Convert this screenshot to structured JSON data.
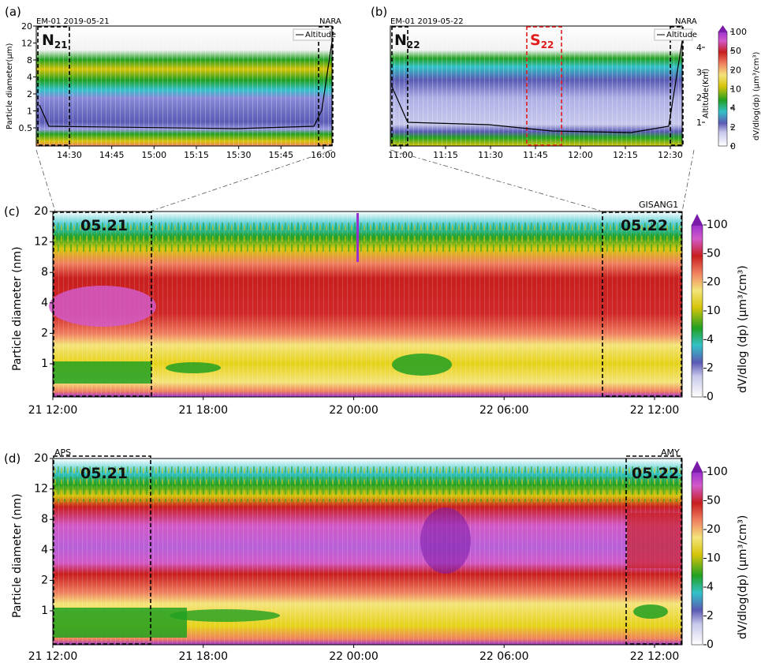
{
  "colors": {
    "scale": [
      "#ffffff",
      "#c8c8ec",
      "#5a5ab4",
      "#2d2d88",
      "#33c2c8",
      "#7ed0b8",
      "#22a022",
      "#d6c40a",
      "#f4e47a",
      "#f08060",
      "#c81e1e",
      "#d25ac8",
      "#7a1aa8",
      "#000000",
      "#d01f1f"
    ]
  },
  "panels": [
    {
      "id": "a",
      "panel_label": "(a)",
      "left_title": "EM-01 2019-05-21",
      "right_title": "NARA",
      "legend": "Altitude",
      "yticks": [
        "20",
        "12",
        "8",
        "4",
        "2",
        "1",
        "0.5"
      ],
      "ylabel": "Particle diameter(μm)",
      "xticks": [
        "14:30",
        "14:45",
        "15:00",
        "15:15",
        "15:30",
        "15:45",
        "16:00"
      ],
      "box_labels": [
        {
          "main": "N",
          "sub": "21",
          "color": "black"
        }
      ]
    },
    {
      "id": "b",
      "panel_label": "(b)",
      "left_title": "EM-01 2019-05-22",
      "right_title": "NARA",
      "legend": "Altitude",
      "xticks": [
        "11:00",
        "11:15",
        "11:30",
        "11:45",
        "12:00",
        "12:15",
        "12:30"
      ],
      "alt_ticks": [
        "4",
        "3",
        "2",
        "1"
      ],
      "alt_label": "Altitude(Km)",
      "cbar_ticks": [
        "100",
        "50",
        "20",
        "10",
        "4",
        "2",
        "0"
      ],
      "cbar_label": "dV/dlog(dp) (μm³/cm³)",
      "box_labels": [
        {
          "main": "N",
          "sub": "22",
          "color": "black"
        },
        {
          "main": "S",
          "sub": "22",
          "color": "red"
        }
      ]
    },
    {
      "id": "c",
      "panel_label": "(c)",
      "corner_right": "GISANG1",
      "yticks": [
        "20",
        "12",
        "8",
        "4",
        "2",
        "1"
      ],
      "ylabel": "Particle diameter (nm)",
      "xticks": [
        "21 12:00",
        "21 18:00",
        "22 00:00",
        "22 06:00",
        "22 12:00"
      ],
      "box_labels": [
        "05.21",
        "05.22"
      ],
      "cbar_ticks": [
        "100",
        "50",
        "20",
        "10",
        "4",
        "2",
        "0"
      ],
      "cbar_label": "dV/dlog (dp) (μm³/cm³)"
    },
    {
      "id": "d",
      "panel_label": "(d)",
      "corner_left": "APS",
      "corner_right": "AMY",
      "yticks": [
        "20",
        "12",
        "8",
        "4",
        "2",
        "1"
      ],
      "ylabel": "Particle diameter (nm)",
      "xticks": [
        "21 12:00",
        "21 18:00",
        "22 00:00",
        "22 06:00",
        "22 12:00"
      ],
      "box_labels": [
        "05.21",
        "05.22"
      ],
      "cbar_ticks": [
        "100",
        "50",
        "20",
        "10",
        "4",
        "2",
        "0"
      ],
      "cbar_label": "dV/dlog(dp) (μm³/cm³)"
    }
  ],
  "chart_data": [
    {
      "type": "heatmap",
      "panel": "(a)",
      "title": "EM-01 2019-05-21",
      "ylabel": "Particle diameter(μm)",
      "y_ticks": [
        20,
        12,
        8,
        4,
        2,
        1,
        0.5
      ],
      "x_ticks": [
        "14:30",
        "14:45",
        "15:00",
        "15:15",
        "15:30",
        "15:45",
        "16:00"
      ],
      "y2label": "Altitude(Km)",
      "colorbar": [
        0,
        2,
        4,
        10,
        20,
        50,
        100
      ],
      "bands_um_approx": [
        {
          "range": [
            4,
            6
          ],
          "level": "10-20"
        },
        {
          "range": [
            2,
            4
          ],
          "level": "4-10"
        },
        {
          "range": [
            0.6,
            2
          ],
          "level": "0-2"
        },
        {
          "range": [
            0.3,
            0.5
          ],
          "level": "10-50"
        }
      ],
      "series": [
        {
          "name": "Altitude",
          "x": [
            "14:23",
            "14:30",
            "15:00",
            "15:30",
            "15:55",
            "16:00",
            "16:05"
          ],
          "y_km": [
            2.9,
            0.6,
            0.5,
            0.5,
            0.5,
            1.5,
            4.0
          ]
        }
      ]
    },
    {
      "type": "heatmap",
      "panel": "(b)",
      "title": "EM-01 2019-05-22",
      "x_ticks": [
        "11:00",
        "11:15",
        "11:30",
        "11:45",
        "12:00",
        "12:15",
        "12:30"
      ],
      "y2label": "Altitude(Km)",
      "y2_ticks": [
        1,
        2,
        3,
        4
      ],
      "colorbar": [
        0,
        2,
        4,
        10,
        20,
        50,
        100
      ],
      "series": [
        {
          "name": "Altitude",
          "x": [
            "10:57",
            "11:05",
            "11:30",
            "12:00",
            "12:30",
            "12:35"
          ],
          "y_km": [
            3.3,
            1.0,
            0.9,
            0.7,
            0.8,
            4.2
          ]
        }
      ]
    },
    {
      "type": "heatmap",
      "panel": "(c)",
      "ylabel": "Particle diameter (nm)",
      "y_ticks": [
        20,
        12,
        8,
        4,
        2,
        1
      ],
      "x_ticks": [
        "21 12:00",
        "21 18:00",
        "22 00:00",
        "22 06:00",
        "22 12:00"
      ],
      "colorbar_label": "dV/dlog (dp) (μm³/cm³)",
      "colorbar": [
        0,
        2,
        4,
        10,
        20,
        50,
        100
      ],
      "bands_nm_approx": [
        {
          "range": [
            8,
            20
          ],
          "level": "10-20 (noisy)"
        },
        {
          "range": [
            2,
            8
          ],
          "level": "20-50"
        },
        {
          "range": [
            2.5,
            4
          ],
          "level": "50-100 (05.21 box)"
        },
        {
          "range": [
            1.2,
            2
          ],
          "level": "20"
        },
        {
          "range": [
            0.6,
            1.2
          ],
          "level": "10-20"
        }
      ]
    },
    {
      "type": "heatmap",
      "panel": "(d)",
      "ylabel": "Particle diameter (nm)",
      "y_ticks": [
        20,
        12,
        8,
        4,
        2,
        1
      ],
      "x_ticks": [
        "21 12:00",
        "21 18:00",
        "22 00:00",
        "22 06:00",
        "22 12:00"
      ],
      "colorbar_label": "dV/dlog(dp) (μm³/cm³)",
      "colorbar": [
        0,
        2,
        4,
        10,
        20,
        50,
        100
      ],
      "bands_nm_approx": [
        {
          "range": [
            8,
            20
          ],
          "level": "10-20 (noisy)"
        },
        {
          "range": [
            5,
            8
          ],
          "level": "20-50"
        },
        {
          "range": [
            2.5,
            5
          ],
          "level": "50-100"
        },
        {
          "range": [
            1.3,
            2.5
          ],
          "level": "20-50"
        },
        {
          "range": [
            0.6,
            1.3
          ],
          "level": "10-20"
        }
      ]
    }
  ]
}
